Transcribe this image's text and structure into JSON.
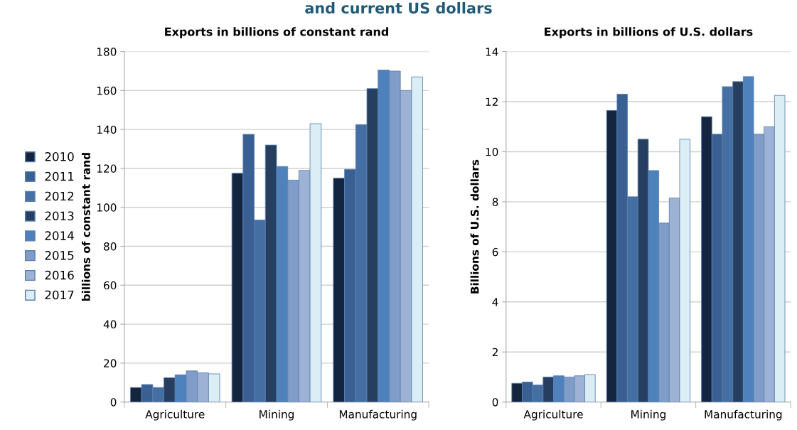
{
  "chart_data": [
    {
      "type": "bar",
      "title": "Exports in billions of constant rand",
      "ylabel": "billions of constant rand",
      "annotations": [
        "and current US dollars"
      ],
      "categories": [
        "Agriculture",
        "Mining",
        "Manufacturing"
      ],
      "series": [
        {
          "name": "2010",
          "color": "#14263f",
          "values": [
            7.5,
            117.5,
            115
          ]
        },
        {
          "name": "2011",
          "color": "#3a6093",
          "values": [
            9,
            137.5,
            119.5
          ]
        },
        {
          "name": "2012",
          "color": "#456fa2",
          "values": [
            7.5,
            93.5,
            142.5
          ]
        },
        {
          "name": "2013",
          "color": "#263f61",
          "values": [
            12.5,
            132,
            161
          ]
        },
        {
          "name": "2014",
          "color": "#4f81bd",
          "values": [
            14,
            121,
            170.5
          ]
        },
        {
          "name": "2015",
          "color": "#7f9dc8",
          "values": [
            16,
            114,
            170
          ]
        },
        {
          "name": "2016",
          "color": "#9db2d5",
          "values": [
            15,
            119,
            160
          ]
        },
        {
          "name": "2017",
          "color": "#dbeef5",
          "values": [
            14.5,
            143,
            167
          ]
        }
      ],
      "ylim": [
        0,
        180
      ],
      "yticks": [
        0,
        20,
        40,
        60,
        80,
        100,
        120,
        140,
        160,
        180
      ],
      "grid": "y",
      "legend": "left"
    },
    {
      "type": "bar",
      "title": "Exports in billions of U.S. dollars",
      "ylabel": "Billions of U.S. dollars",
      "categories": [
        "Agriculture",
        "Mining",
        "Manufacturing"
      ],
      "series": [
        {
          "color": "#14263f",
          "values": [
            0.75,
            11.65,
            11.4
          ]
        },
        {
          "color": "#3a6093",
          "values": [
            0.8,
            12.3,
            10.7
          ]
        },
        {
          "color": "#456fa2",
          "values": [
            0.68,
            8.2,
            12.6
          ]
        },
        {
          "color": "#263f61",
          "values": [
            1.0,
            10.5,
            12.8
          ]
        },
        {
          "color": "#4f81bd",
          "values": [
            1.05,
            9.25,
            13.0
          ]
        },
        {
          "color": "#7f9dc8",
          "values": [
            1.0,
            7.15,
            10.7
          ]
        },
        {
          "color": "#9db2d5",
          "values": [
            1.05,
            8.15,
            11.0
          ]
        },
        {
          "color": "#dbeef5",
          "values": [
            1.1,
            10.5,
            12.25
          ]
        }
      ],
      "ylim": [
        0,
        14
      ],
      "yticks": [
        0,
        2,
        4,
        6,
        8,
        10,
        12,
        14
      ],
      "grid": "y"
    }
  ]
}
